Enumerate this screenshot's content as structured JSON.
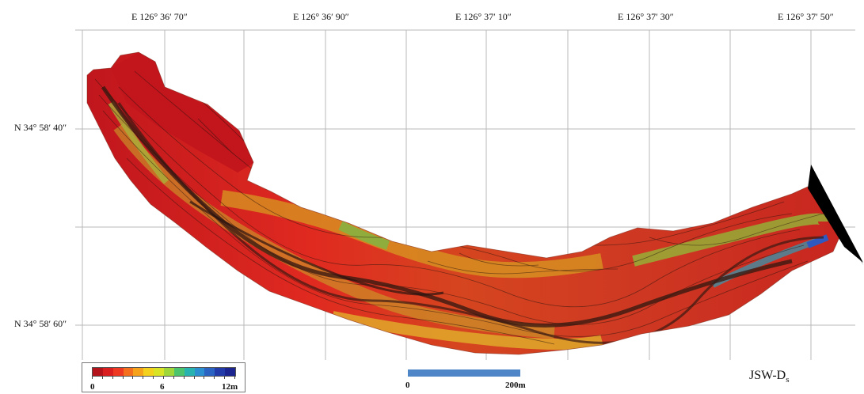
{
  "grid": {
    "longitude_labels": [
      "E 126° 36′ 70″",
      "E 126° 36′ 90″",
      "E 126° 37′ 10″",
      "E 126° 37′ 30″",
      "E 126° 37′ 50″"
    ],
    "latitude_labels": [
      "N 34° 58′ 40″",
      "N 34° 58′ 60″"
    ]
  },
  "legend": {
    "min_label": "0",
    "mid_label": "6",
    "max_label": "12m",
    "colors": [
      "#b3141b",
      "#d91f1f",
      "#ee3a22",
      "#f4701e",
      "#f7a21b",
      "#f4d11c",
      "#d8e425",
      "#9fd63a",
      "#4cc46e",
      "#29b3b0",
      "#2c8fd0",
      "#2a63c1",
      "#233ba8",
      "#1c2490"
    ]
  },
  "scale_bar": {
    "start_label": "0",
    "end_label": "200m"
  },
  "map_title": {
    "main": "JSW-D",
    "subscript": "s"
  }
}
